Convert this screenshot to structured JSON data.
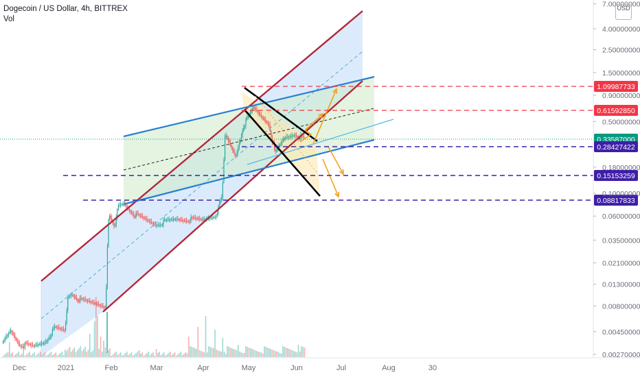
{
  "header": {
    "symbol": "Dogecoin / US Dollar, 4h, BITTREX",
    "indicator": "Vol"
  },
  "price_axis": {
    "unit_label": "USD"
  },
  "colors": {
    "candle_up": "#26a69a",
    "candle_down": "#ef5350",
    "channel_red": "#b2283a",
    "channel_blue": "#2a7fd0",
    "channel_fill": "#c9e1fb",
    "green_fill": "#cdebc8",
    "orange": "#f5a21b",
    "red_level": "#f23645",
    "blue_level": "#3f1fa8",
    "current_price": "#089981"
  },
  "chart_data": {
    "type": "candlestick",
    "title": "Dogecoin / US Dollar, 4h, BITTREX",
    "x_ticks": [
      "Dec",
      "2021",
      "Feb",
      "Mar",
      "Apr",
      "May",
      "Jun",
      "Jul",
      "Aug",
      "30"
    ],
    "y_ticks": [
      "7.00000000",
      "4.00000000",
      "2.50000000",
      "1.50000000",
      "0.90000000",
      "0.50000000",
      "0.18000000",
      "0.10000000",
      "0.06000000",
      "0.03500000",
      "0.02100000",
      "0.01300000",
      "0.00800000",
      "0.00450000",
      "0.00270000"
    ],
    "y_scale": "log",
    "ylim": [
      0.0027,
      7.0
    ],
    "price_path": [
      [
        "2020-11-20",
        0.0035
      ],
      [
        "2020-11-25",
        0.0046
      ],
      [
        "2020-12-01",
        0.0034
      ],
      [
        "2020-12-10",
        0.0032
      ],
      [
        "2020-12-18",
        0.0036
      ],
      [
        "2020-12-24",
        0.0048
      ],
      [
        "2020-12-31",
        0.0046
      ],
      [
        "2021-01-02",
        0.01
      ],
      [
        "2021-01-05",
        0.0105
      ],
      [
        "2021-01-10",
        0.009
      ],
      [
        "2021-01-20",
        0.0085
      ],
      [
        "2021-01-27",
        0.008
      ],
      [
        "2021-01-28",
        0.03
      ],
      [
        "2021-01-29",
        0.06
      ],
      [
        "2021-02-02",
        0.045
      ],
      [
        "2021-02-04",
        0.075
      ],
      [
        "2021-02-08",
        0.08
      ],
      [
        "2021-02-15",
        0.062
      ],
      [
        "2021-03-01",
        0.05
      ],
      [
        "2021-03-15",
        0.056
      ],
      [
        "2021-04-01",
        0.055
      ],
      [
        "2021-04-10",
        0.062
      ],
      [
        "2021-04-14",
        0.09
      ],
      [
        "2021-04-16",
        0.37
      ],
      [
        "2021-04-23",
        0.23
      ],
      [
        "2021-04-28",
        0.45
      ],
      [
        "2021-05-05",
        0.68
      ],
      [
        "2021-05-08",
        0.6
      ],
      [
        "2021-05-15",
        0.48
      ],
      [
        "2021-05-19",
        0.24
      ],
      [
        "2021-05-25",
        0.34
      ],
      [
        "2021-06-01",
        0.38
      ],
      [
        "2021-06-08",
        0.33
      ]
    ],
    "horizontal_levels": [
      {
        "label": "1.09987733",
        "role": "resistance"
      },
      {
        "label": "0.61592850",
        "role": "resistance"
      },
      {
        "label": "0.33587000",
        "role": "current price"
      },
      {
        "label": "0.28427422",
        "role": "support"
      },
      {
        "label": "0.15153259",
        "role": "support"
      },
      {
        "label": "0.08817833",
        "role": "support"
      }
    ],
    "grid": false
  }
}
